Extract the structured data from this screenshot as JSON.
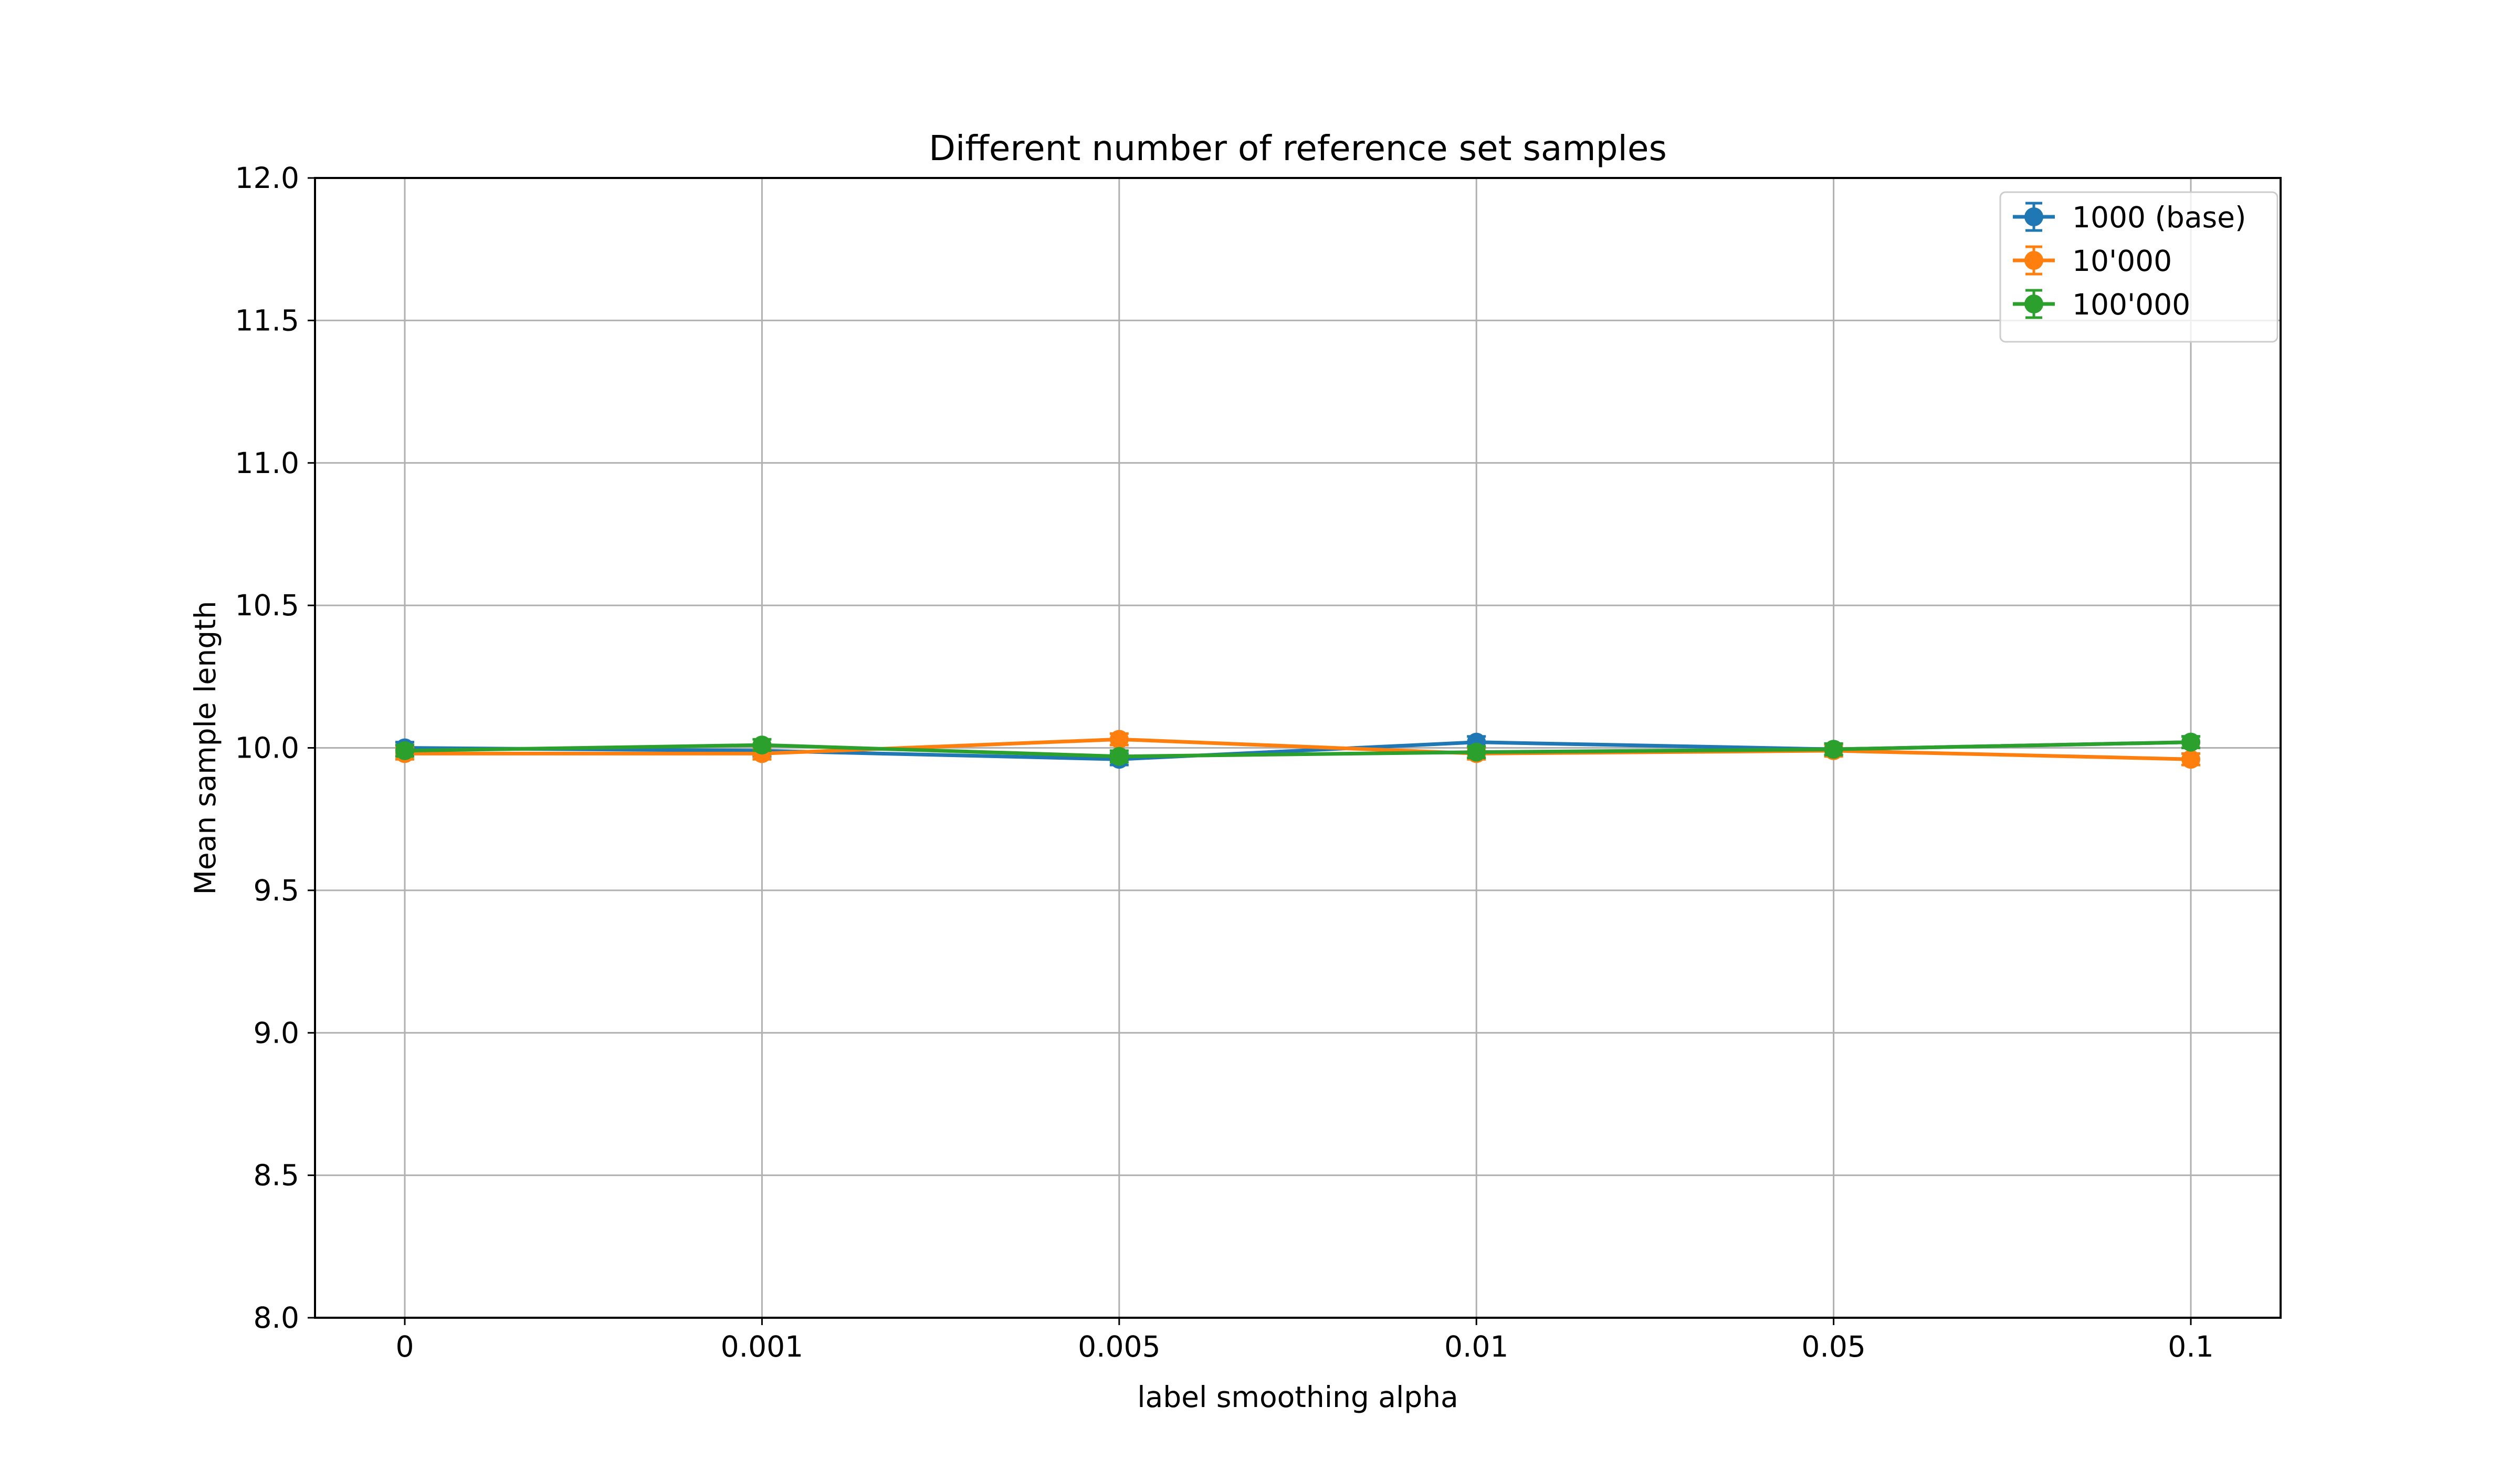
{
  "chart_data": {
    "type": "line",
    "title": "Different number of reference set samples",
    "xlabel": "label smoothing alpha",
    "ylabel": "Mean sample length",
    "categories": [
      "0",
      "0.001",
      "0.005",
      "0.01",
      "0.05",
      "0.1"
    ],
    "ylim": [
      8.0,
      12.0
    ],
    "yticks": [
      "8.0",
      "8.5",
      "9.0",
      "9.5",
      "10.0",
      "10.5",
      "11.0",
      "11.5",
      "12.0"
    ],
    "grid": true,
    "legend_position": "top-right",
    "series": [
      {
        "name": "1000 (base)",
        "color": "#1f77b4",
        "values": [
          10.0,
          9.99,
          9.96,
          10.02,
          9.995,
          10.02
        ],
        "errors": [
          0.02,
          0.02,
          0.02,
          0.02,
          0.02,
          0.02
        ]
      },
      {
        "name": "10'000",
        "color": "#ff7f0e",
        "values": [
          9.98,
          9.98,
          10.03,
          9.98,
          9.99,
          9.96
        ],
        "errors": [
          0.02,
          0.02,
          0.02,
          0.02,
          0.02,
          0.02
        ]
      },
      {
        "name": "100'000",
        "color": "#2ca02c",
        "values": [
          9.99,
          10.01,
          9.97,
          9.985,
          9.995,
          10.02
        ],
        "errors": [
          0.02,
          0.02,
          0.02,
          0.02,
          0.02,
          0.02
        ]
      }
    ]
  }
}
